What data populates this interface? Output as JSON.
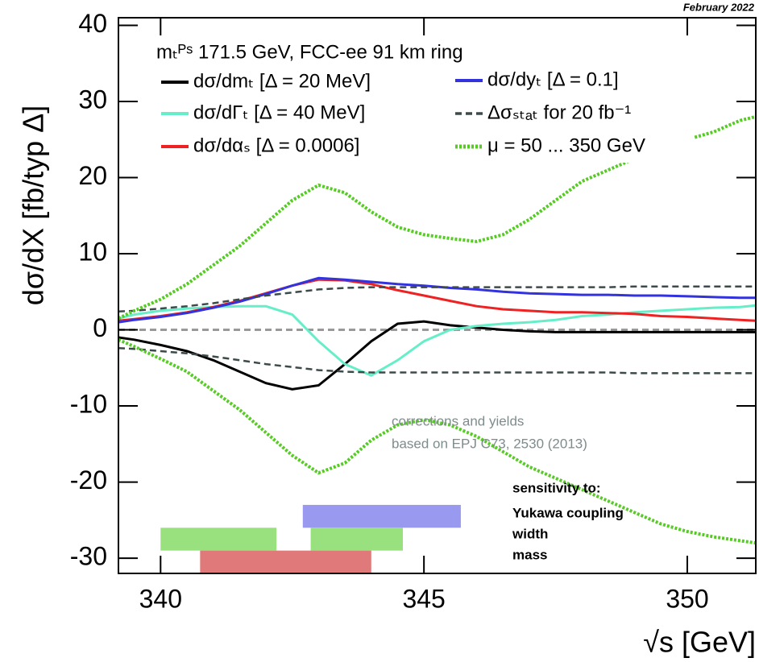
{
  "chart_data": {
    "type": "line",
    "stamp": "February 2022",
    "header": "mₜᴾˢ 171.5 GeV, FCC-ee 91 km ring",
    "xlabel": "√s [GeV]",
    "ylabel": "dσ/dX [fb/typ Δ]",
    "xlim": [
      339.2,
      351.3
    ],
    "ylim": [
      -32,
      41
    ],
    "xticks": [
      340,
      345,
      350
    ],
    "yticks": [
      -30,
      -20,
      -10,
      0,
      10,
      20,
      30,
      40
    ],
    "reference_lines": [
      0
    ],
    "x": [
      339.2,
      339.5,
      340,
      340.5,
      341,
      341.5,
      342,
      342.5,
      343,
      343.5,
      344,
      344.5,
      345,
      345.5,
      346,
      346.5,
      347,
      347.5,
      348,
      348.5,
      349,
      349.5,
      350,
      350.5,
      351,
      351.3
    ],
    "series": [
      {
        "name": "dσ/dmₜ [Δ = 20 MeV]",
        "color": "#000000",
        "style": "solid",
        "values": [
          -1,
          -1.3,
          -2,
          -2.8,
          -4,
          -5.5,
          -7,
          -7.8,
          -7.3,
          -4.5,
          -1.5,
          0.8,
          1.1,
          0.6,
          0.3,
          0,
          -0.2,
          -0.3,
          -0.3,
          -0.3,
          -0.3,
          -0.3,
          -0.3,
          -0.3,
          -0.3,
          -0.3
        ]
      },
      {
        "name": "dσ/dΓₜ [Δ = 40 MeV]",
        "color": "#66eec8",
        "style": "solid",
        "values": [
          1.5,
          2,
          2.5,
          2.8,
          3,
          3.1,
          3.1,
          2,
          -1.5,
          -4.5,
          -6,
          -4,
          -1.5,
          0,
          0.5,
          0.8,
          1,
          1.3,
          1.8,
          2,
          2.3,
          2.5,
          2.7,
          2.9,
          3,
          3.2
        ]
      },
      {
        "name": "dσ/dαₛ [Δ = 0.0006]",
        "color": "#ee2222",
        "style": "solid",
        "values": [
          1.2,
          1.4,
          1.8,
          2.3,
          3,
          3.8,
          4.8,
          5.8,
          6.6,
          6.5,
          6,
          5.2,
          4.5,
          3.8,
          3.1,
          2.7,
          2.5,
          2.3,
          2.3,
          2.2,
          2.1,
          1.8,
          1.7,
          1.5,
          1.3,
          1.2
        ]
      },
      {
        "name": "dσ/dyₜ [Δ = 0.1]",
        "color": "#3333dd",
        "style": "solid",
        "values": [
          1,
          1.3,
          1.7,
          2.2,
          2.9,
          3.7,
          4.7,
          5.8,
          6.8,
          6.6,
          6.3,
          6,
          5.8,
          5.5,
          5.3,
          5,
          4.8,
          4.7,
          4.6,
          4.6,
          4.5,
          4.5,
          4.4,
          4.3,
          4.2,
          4.2
        ]
      },
      {
        "name": "Δσₛₜₐₜ for 20 fb⁻¹",
        "color": "#3c4a4a",
        "style": "dashed",
        "values": [
          2.4,
          2.5,
          2.8,
          3.1,
          3.5,
          4,
          4.5,
          4.9,
          5.3,
          5.5,
          5.6,
          5.6,
          5.6,
          5.6,
          5.6,
          5.6,
          5.6,
          5.6,
          5.6,
          5.6,
          5.7,
          5.7,
          5.7,
          5.7,
          5.7,
          5.7
        ]
      },
      {
        "color": "#3c4a4a",
        "style": "dashed",
        "values": [
          -2.4,
          -2.5,
          -2.8,
          -3.1,
          -3.5,
          -4,
          -4.5,
          -4.9,
          -5.3,
          -5.5,
          -5.6,
          -5.6,
          -5.6,
          -5.6,
          -5.6,
          -5.6,
          -5.6,
          -5.6,
          -5.6,
          -5.6,
          -5.7,
          -5.7,
          -5.7,
          -5.7,
          -5.7,
          -5.7
        ]
      },
      {
        "name": "μ = 50 ... 350 GeV",
        "color": "#55cc22",
        "style": "dotted",
        "values": [
          1.5,
          2.5,
          4,
          6,
          8.5,
          11,
          14,
          17,
          19,
          18,
          15.5,
          13.5,
          12.5,
          12,
          11.6,
          12.5,
          14.5,
          17,
          19.5,
          21,
          22.5,
          24,
          25,
          26,
          27.5,
          28
        ]
      },
      {
        "color": "#55cc22",
        "style": "dotted",
        "values": [
          -1.3,
          -2.2,
          -3.8,
          -5.5,
          -8,
          -10.5,
          -13.5,
          -16.5,
          -18.8,
          -17.5,
          -14.5,
          -12.5,
          -11.8,
          -12.5,
          -14,
          -16,
          -18,
          -19.5,
          -21,
          -22.5,
          -24,
          -25.5,
          -26.5,
          -27.2,
          -27.7,
          -28
        ]
      }
    ],
    "annotations": [
      "corrections and yields",
      "based on EPJ C73, 2530 (2013)"
    ],
    "sensitivity": {
      "title": "sensitivity to:",
      "items": [
        {
          "label": "Yukawa coupling",
          "color": "#9999f0",
          "ranges": [
            [
              342.7,
              345.7
            ]
          ],
          "yrange": [
            -26,
            -23
          ]
        },
        {
          "label": "width",
          "color": "#99e07f",
          "ranges": [
            [
              340,
              342.2
            ],
            [
              342.85,
              344.6
            ]
          ],
          "yrange": [
            -29,
            -26
          ]
        },
        {
          "label": "mass",
          "color": "#e07a7a",
          "ranges": [
            [
              340.75,
              344
            ]
          ],
          "yrange": [
            -32,
            -29
          ]
        }
      ]
    }
  }
}
